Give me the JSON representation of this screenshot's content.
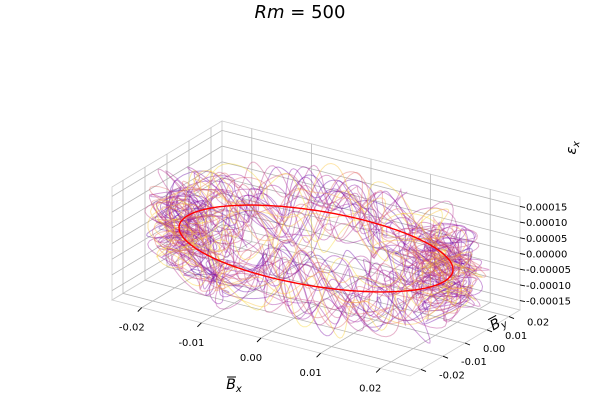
{
  "chart_data": {
    "type": "line",
    "title": "Rm = 500",
    "title_math": {
      "base": "Rm",
      "op": " = ",
      "value": "500"
    },
    "xlabel": {
      "base": "B",
      "sub": "x",
      "accent": "bar"
    },
    "ylabel": {
      "base": "B",
      "sub": "y",
      "accent": "bar"
    },
    "zlabel": {
      "base": "ε",
      "sub": "x",
      "accent": "none"
    },
    "x_ticks": [
      "-0.02",
      "-0.01",
      "0.00",
      "0.01",
      "0.02"
    ],
    "y_ticks": [
      "-0.02",
      "-0.01",
      "0.00",
      "0.01",
      "0.02"
    ],
    "z_ticks": [
      "-0.00015",
      "-0.00010",
      "-0.00005",
      "0.00000",
      "0.00005",
      "0.00010",
      "0.00015"
    ],
    "xlim": [
      -0.025,
      0.025
    ],
    "ylim": [
      -0.025,
      0.025
    ],
    "zlim": [
      -0.00018,
      0.00018
    ],
    "grid": true,
    "mean_curve": {
      "color": "#ff0000",
      "radius": 0.022
    },
    "trajectories": {
      "count": 26,
      "colormap": "plasma",
      "radius": 0.022,
      "alpha": 0.35
    }
  }
}
